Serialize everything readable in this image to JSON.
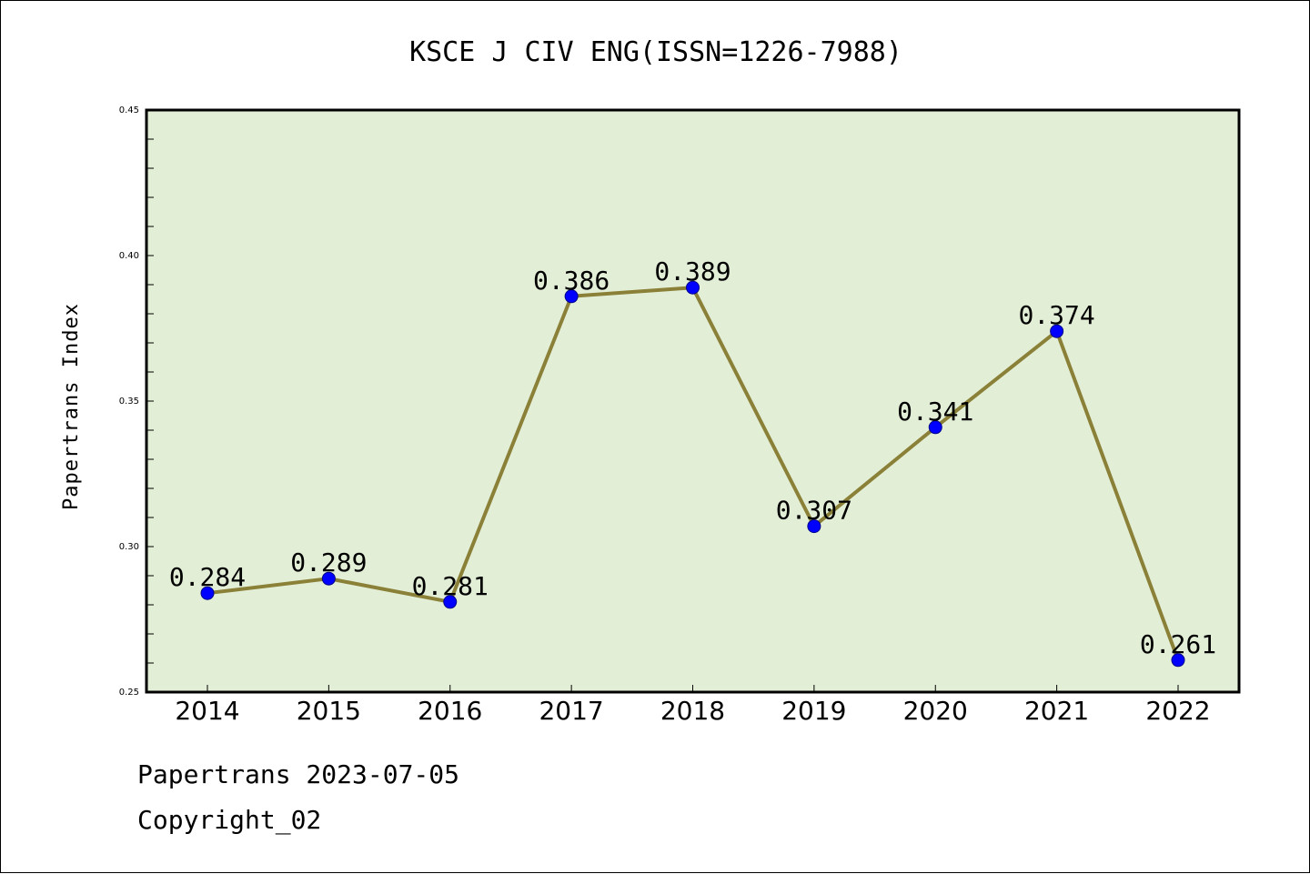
{
  "chart_data": {
    "type": "line",
    "title": "KSCE J CIV ENG(ISSN=1226-7988)",
    "xlabel": "",
    "ylabel": "Papertrans Index",
    "categories": [
      "2014",
      "2015",
      "2016",
      "2017",
      "2018",
      "2019",
      "2020",
      "2021",
      "2022"
    ],
    "series": [
      {
        "values": [
          0.284,
          0.289,
          0.281,
          0.386,
          0.389,
          0.307,
          0.341,
          0.374,
          0.261
        ],
        "labels": [
          "0.284",
          "0.289",
          "0.281",
          "0.386",
          "0.389",
          "0.307",
          "0.341",
          "0.374",
          "0.261"
        ]
      }
    ],
    "ylim": [
      0.25,
      0.45
    ],
    "yticks": [
      "0.25",
      "0.30",
      "0.35",
      "0.40",
      "0.45"
    ],
    "grid": false,
    "legend": "none",
    "colors": {
      "plot_background": "#e2efd6",
      "line": "#8b8038",
      "marker": "#0000ff"
    }
  },
  "footer": {
    "source": "Papertrans 2023-07-05",
    "copyright": "Copyright_02"
  }
}
